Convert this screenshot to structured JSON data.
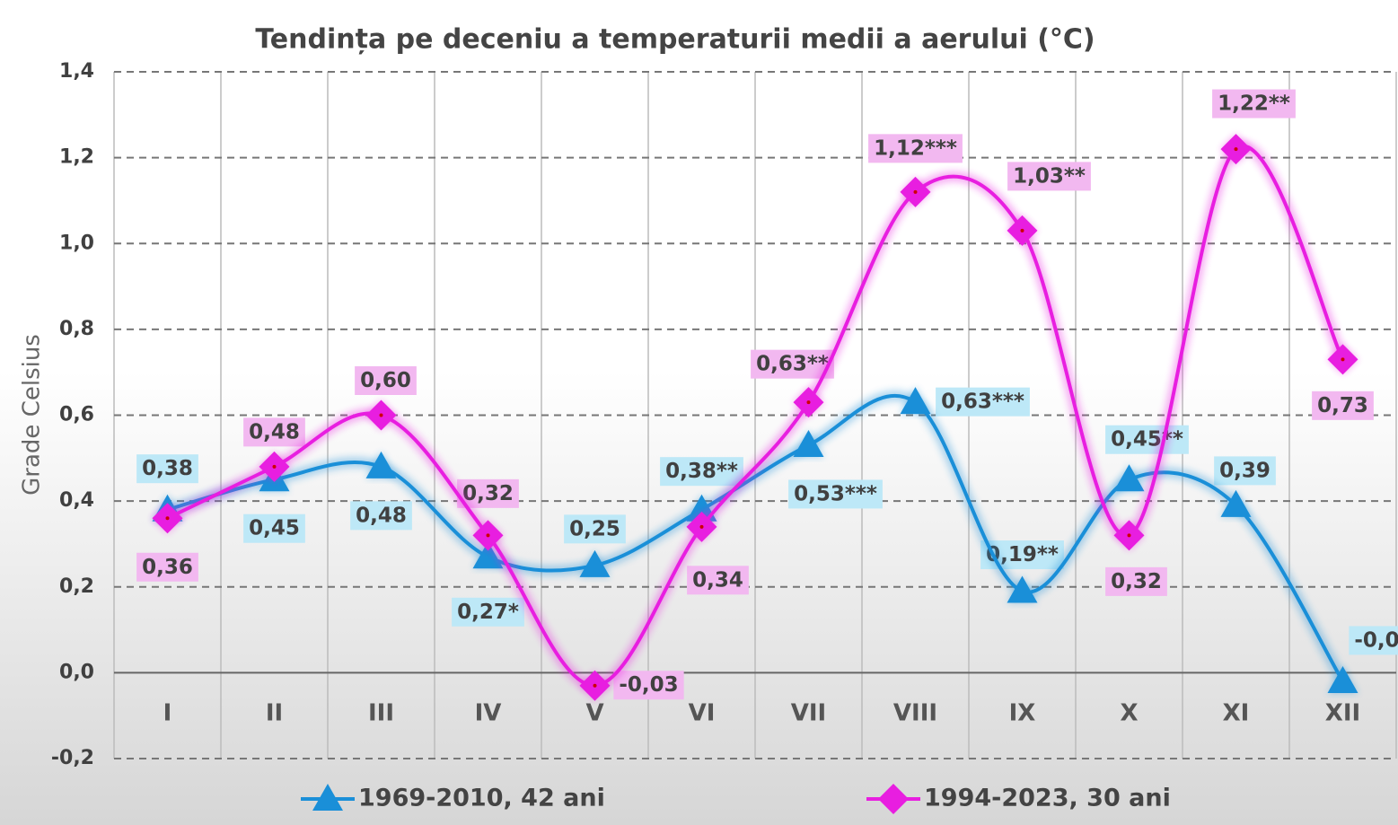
{
  "chart_data": {
    "type": "line",
    "title": "Tendința pe deceniu a temperaturii medii a aerului (°C)",
    "y_label": "Grade Celsius",
    "categories": [
      "I",
      "II",
      "III",
      "IV",
      "V",
      "VI",
      "VII",
      "VIII",
      "IX",
      "X",
      "XI",
      "XII"
    ],
    "series": [
      {
        "name": "1969-2010, 42 ani",
        "color": "#1a8fd8",
        "marker": "triangle",
        "values": [
          0.38,
          0.45,
          0.48,
          0.27,
          0.25,
          0.38,
          0.53,
          0.63,
          0.19,
          0.45,
          0.39,
          -0.02
        ],
        "value_labels": [
          "0,38",
          "0,45",
          "0,48",
          "0,27*",
          "0,25",
          "0,38**",
          "0,53***",
          "0,63***",
          "0,19**",
          "0,45**",
          "0,39",
          "-0,0"
        ]
      },
      {
        "name": "1994-2023, 30 ani",
        "color": "#e81ee0",
        "marker": "diamond",
        "values": [
          0.36,
          0.48,
          0.6,
          0.32,
          -0.03,
          0.34,
          0.63,
          1.12,
          1.03,
          0.32,
          1.22,
          0.73
        ],
        "value_labels": [
          "0,36",
          "0,48",
          "0,60",
          "0,32",
          "-0,03",
          "0,34",
          "0,63**",
          "1,12***",
          "1,03**",
          "0,32",
          "1,22**",
          "0,73"
        ]
      }
    ],
    "ylim": [
      -0.2,
      1.4
    ],
    "yticks": [
      {
        "value": -0.2,
        "label": "-0,2"
      },
      {
        "value": 0,
        "label": "0,0"
      },
      {
        "value": 0.2,
        "label": "0,2"
      },
      {
        "value": 0.4,
        "label": "0,4"
      },
      {
        "value": 0.6,
        "label": "0,6"
      },
      {
        "value": 0.8,
        "label": "0,8"
      },
      {
        "value": 1.0,
        "label": "1,0"
      },
      {
        "value": 1.2,
        "label": "1,2"
      },
      {
        "value": 1.4,
        "label": "1,4"
      }
    ],
    "grid": true,
    "legend": "bottom"
  }
}
